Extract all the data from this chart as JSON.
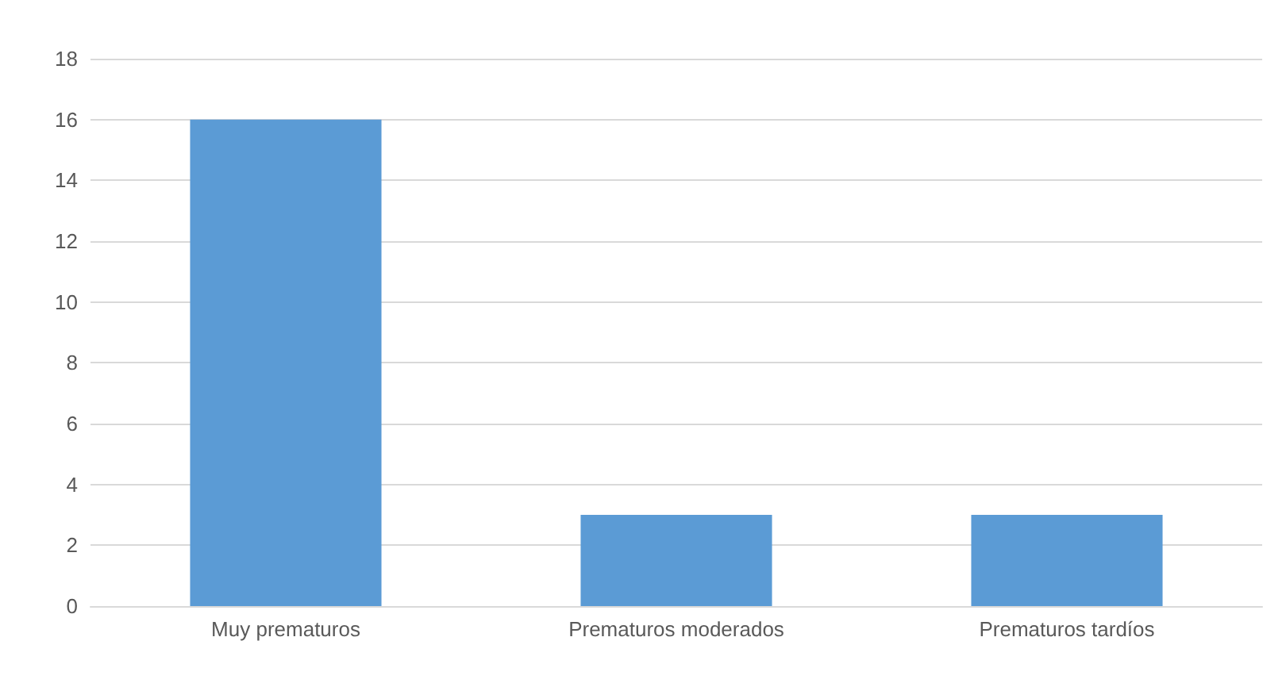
{
  "chart_data": {
    "type": "bar",
    "categories": [
      "Muy prematuros",
      "Prematuros moderados",
      "Prematuros tardíos"
    ],
    "values": [
      16,
      3,
      3
    ],
    "color": "#5b9bd5",
    "ylim": [
      0,
      18
    ],
    "yticks": [
      0,
      2,
      4,
      6,
      8,
      10,
      12,
      14,
      16,
      18
    ],
    "grid": "y"
  }
}
